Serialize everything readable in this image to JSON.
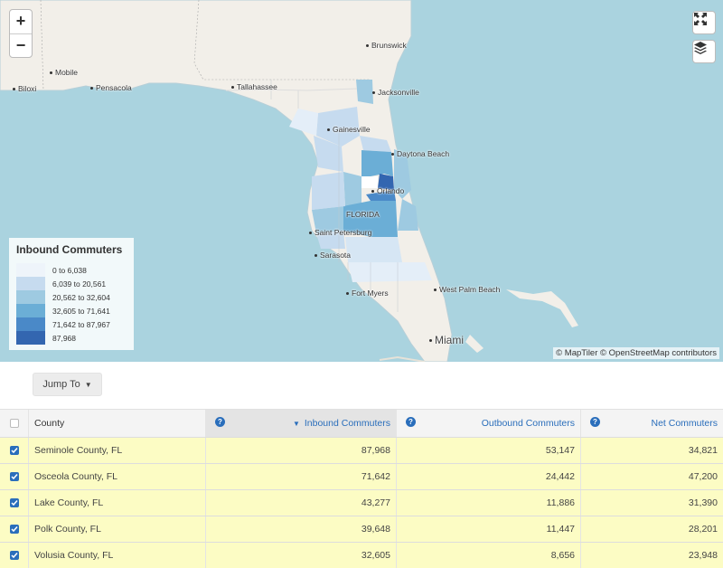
{
  "map": {
    "zoom_in": "+",
    "zoom_out": "−",
    "fullscreen_icon": "expand-icon",
    "layers_icon": "layers-icon",
    "attribution": "© MapTiler © OpenStreetMap contributors",
    "cities": {
      "brunswick": "Brunswick",
      "mobile": "Mobile",
      "biloxi": "Biloxi",
      "pensacola": "Pensacola",
      "tallahassee": "Tallahassee",
      "jacksonville": "Jacksonville",
      "gainesville": "Gainesville",
      "daytona": "Daytona Beach",
      "orlando": "Orlando",
      "florida": "FLORIDA",
      "stpete": "Saint Petersburg",
      "sarasota": "Sarasota",
      "fortmyers": "Fort Myers",
      "wpb": "West Palm Beach",
      "miami": "Miami"
    },
    "legend": {
      "title": "Inbound Commuters",
      "items": [
        {
          "label": "0 to 6,038",
          "color": "#eef4fa"
        },
        {
          "label": "6,039 to 20,561",
          "color": "#c6dbef"
        },
        {
          "label": "20,562 to 32,604",
          "color": "#9ecae1"
        },
        {
          "label": "32,605 to 71,641",
          "color": "#6baed6"
        },
        {
          "label": "71,642 to 87,967",
          "color": "#4a89c8"
        },
        {
          "label": "87,968",
          "color": "#3366b0"
        }
      ]
    }
  },
  "toolbar": {
    "jump_to": "Jump To"
  },
  "table": {
    "headers": {
      "county": "County",
      "inbound": "Inbound Commuters",
      "outbound": "Outbound Commuters",
      "net": "Net Commuters",
      "help": "?"
    },
    "rows": [
      {
        "county": "Seminole County, FL",
        "inbound": "87,968",
        "outbound": "53,147",
        "net": "34,821"
      },
      {
        "county": "Osceola County, FL",
        "inbound": "71,642",
        "outbound": "24,442",
        "net": "47,200"
      },
      {
        "county": "Lake County, FL",
        "inbound": "43,277",
        "outbound": "11,886",
        "net": "31,390"
      },
      {
        "county": "Polk County, FL",
        "inbound": "39,648",
        "outbound": "11,447",
        "net": "28,201"
      },
      {
        "county": "Volusia County, FL",
        "inbound": "32,605",
        "outbound": "8,656",
        "net": "23,948"
      }
    ]
  }
}
